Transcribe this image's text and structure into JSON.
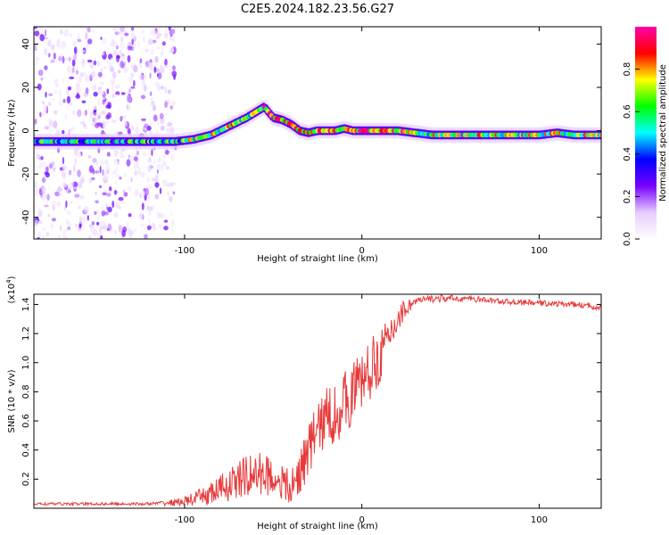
{
  "title": "C2E5.2024.182.23.56.G27",
  "chart_data": [
    {
      "type": "heatmap",
      "title": "",
      "xlabel": "Height of straight line (km)",
      "ylabel": "Frequency (Hz)",
      "xlim": [
        -185,
        135
      ],
      "ylim": [
        -50,
        48
      ],
      "xticks": [
        -100,
        0,
        100
      ],
      "yticks": [
        -40,
        -20,
        0,
        20,
        40
      ],
      "colorbar": {
        "label": "Normalized spectral amplitude",
        "range": [
          0,
          1
        ],
        "ticks": [
          "0.0",
          "0.2",
          "0.4",
          "0.6",
          "0.8"
        ],
        "colors": [
          "#ffffff",
          "#e6ccff",
          "#7700ff",
          "#0000ff",
          "#00ffff",
          "#00ff00",
          "#ffff00",
          "#ff0000",
          "#ff00aa"
        ]
      },
      "ridge": {
        "x": [
          -185,
          -140,
          -105,
          -95,
          -85,
          -75,
          -65,
          -55,
          -50,
          -45,
          -40,
          -35,
          -30,
          -25,
          -20,
          -15,
          -10,
          -5,
          0,
          10,
          20,
          40,
          60,
          80,
          100,
          110,
          120,
          135
        ],
        "y": [
          -5,
          -5,
          -5,
          -4,
          -2,
          2,
          6,
          11,
          6,
          5,
          3,
          0,
          -1,
          0,
          0,
          0,
          1,
          0,
          0,
          0,
          0,
          -2,
          -2,
          -2,
          -2,
          -1,
          -2,
          -2
        ]
      }
    },
    {
      "type": "line",
      "title": "",
      "xlabel": "Height of straight line (km)",
      "ylabel": "SNR (10 * v/v)",
      "yscale_note": "(x10^4)",
      "xlim": [
        -185,
        135
      ],
      "ylim": [
        0,
        1.47
      ],
      "xticks": [
        -100,
        0,
        100
      ],
      "yticks": [
        0.2,
        0.4,
        0.6,
        0.8,
        1.0,
        1.2,
        1.4
      ],
      "series": [
        {
          "color": "#e83a3a",
          "envelope": {
            "x": [
              -185,
              -150,
              -120,
              -105,
              -95,
              -85,
              -75,
              -65,
              -55,
              -45,
              -40,
              -35,
              -30,
              -25,
              -20,
              -15,
              -10,
              -5,
              0,
              5,
              10,
              15,
              20,
              25,
              30,
              40,
              60,
              80,
              100,
              120,
              135
            ],
            "y": [
              0.03,
              0.03,
              0.03,
              0.04,
              0.06,
              0.1,
              0.16,
              0.22,
              0.24,
              0.18,
              0.12,
              0.25,
              0.4,
              0.55,
              0.62,
              0.65,
              0.72,
              0.8,
              0.88,
              0.95,
              1.05,
              1.15,
              1.3,
              1.38,
              1.42,
              1.44,
              1.44,
              1.42,
              1.41,
              1.4,
              1.38
            ]
          },
          "noise_amplitude": {
            "x": [
              -185,
              -120,
              -100,
              -80,
              -60,
              -45,
              -35,
              -20,
              -5,
              10,
              20,
              30,
              60,
              135
            ],
            "y": [
              0.01,
              0.01,
              0.03,
              0.1,
              0.16,
              0.12,
              0.16,
              0.22,
              0.22,
              0.2,
              0.1,
              0.03,
              0.02,
              0.02
            ]
          }
        }
      ]
    }
  ]
}
